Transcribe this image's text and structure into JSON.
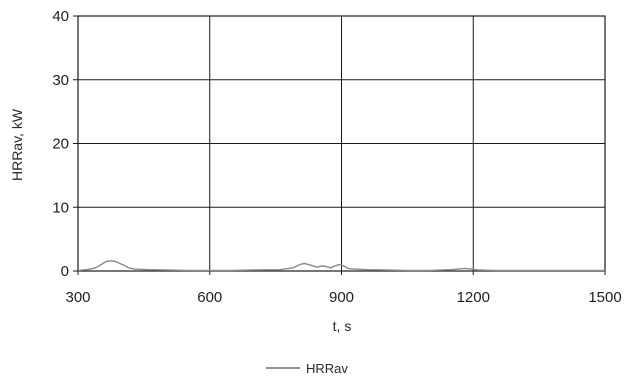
{
  "chart_data": {
    "type": "line",
    "title": "",
    "xlabel": "t, s",
    "ylabel": "HRRav, kW",
    "xlim": [
      300,
      1500
    ],
    "ylim": [
      0,
      40
    ],
    "x_ticks": [
      "300",
      "600",
      "900",
      "1200",
      "1500"
    ],
    "y_ticks": [
      "0",
      "10",
      "20",
      "30",
      "40"
    ],
    "grid": true,
    "legend_position": "bottom-center",
    "series": [
      {
        "name": "HRRav",
        "color": "#8a8a8a",
        "x": [
          300,
          320,
          340,
          355,
          365,
          375,
          385,
          395,
          405,
          415,
          430,
          460,
          500,
          550,
          600,
          650,
          700,
          760,
          790,
          805,
          815,
          825,
          835,
          845,
          855,
          865,
          875,
          885,
          895,
          905,
          915,
          930,
          960,
          1000,
          1050,
          1100,
          1150,
          1180,
          1195,
          1210,
          1250,
          1300,
          1350,
          1400,
          1450,
          1500
        ],
        "y": [
          0.1,
          0.2,
          0.5,
          1.1,
          1.5,
          1.6,
          1.5,
          1.2,
          0.9,
          0.5,
          0.3,
          0.2,
          0.15,
          0.1,
          0.1,
          0.1,
          0.15,
          0.2,
          0.5,
          1.0,
          1.2,
          1.0,
          0.8,
          0.6,
          0.8,
          0.7,
          0.5,
          0.8,
          1.0,
          0.8,
          0.4,
          0.3,
          0.2,
          0.15,
          0.1,
          0.1,
          0.2,
          0.4,
          0.3,
          0.15,
          0.1,
          0.1,
          0.1,
          0.1,
          0.1,
          0.1
        ]
      }
    ]
  }
}
